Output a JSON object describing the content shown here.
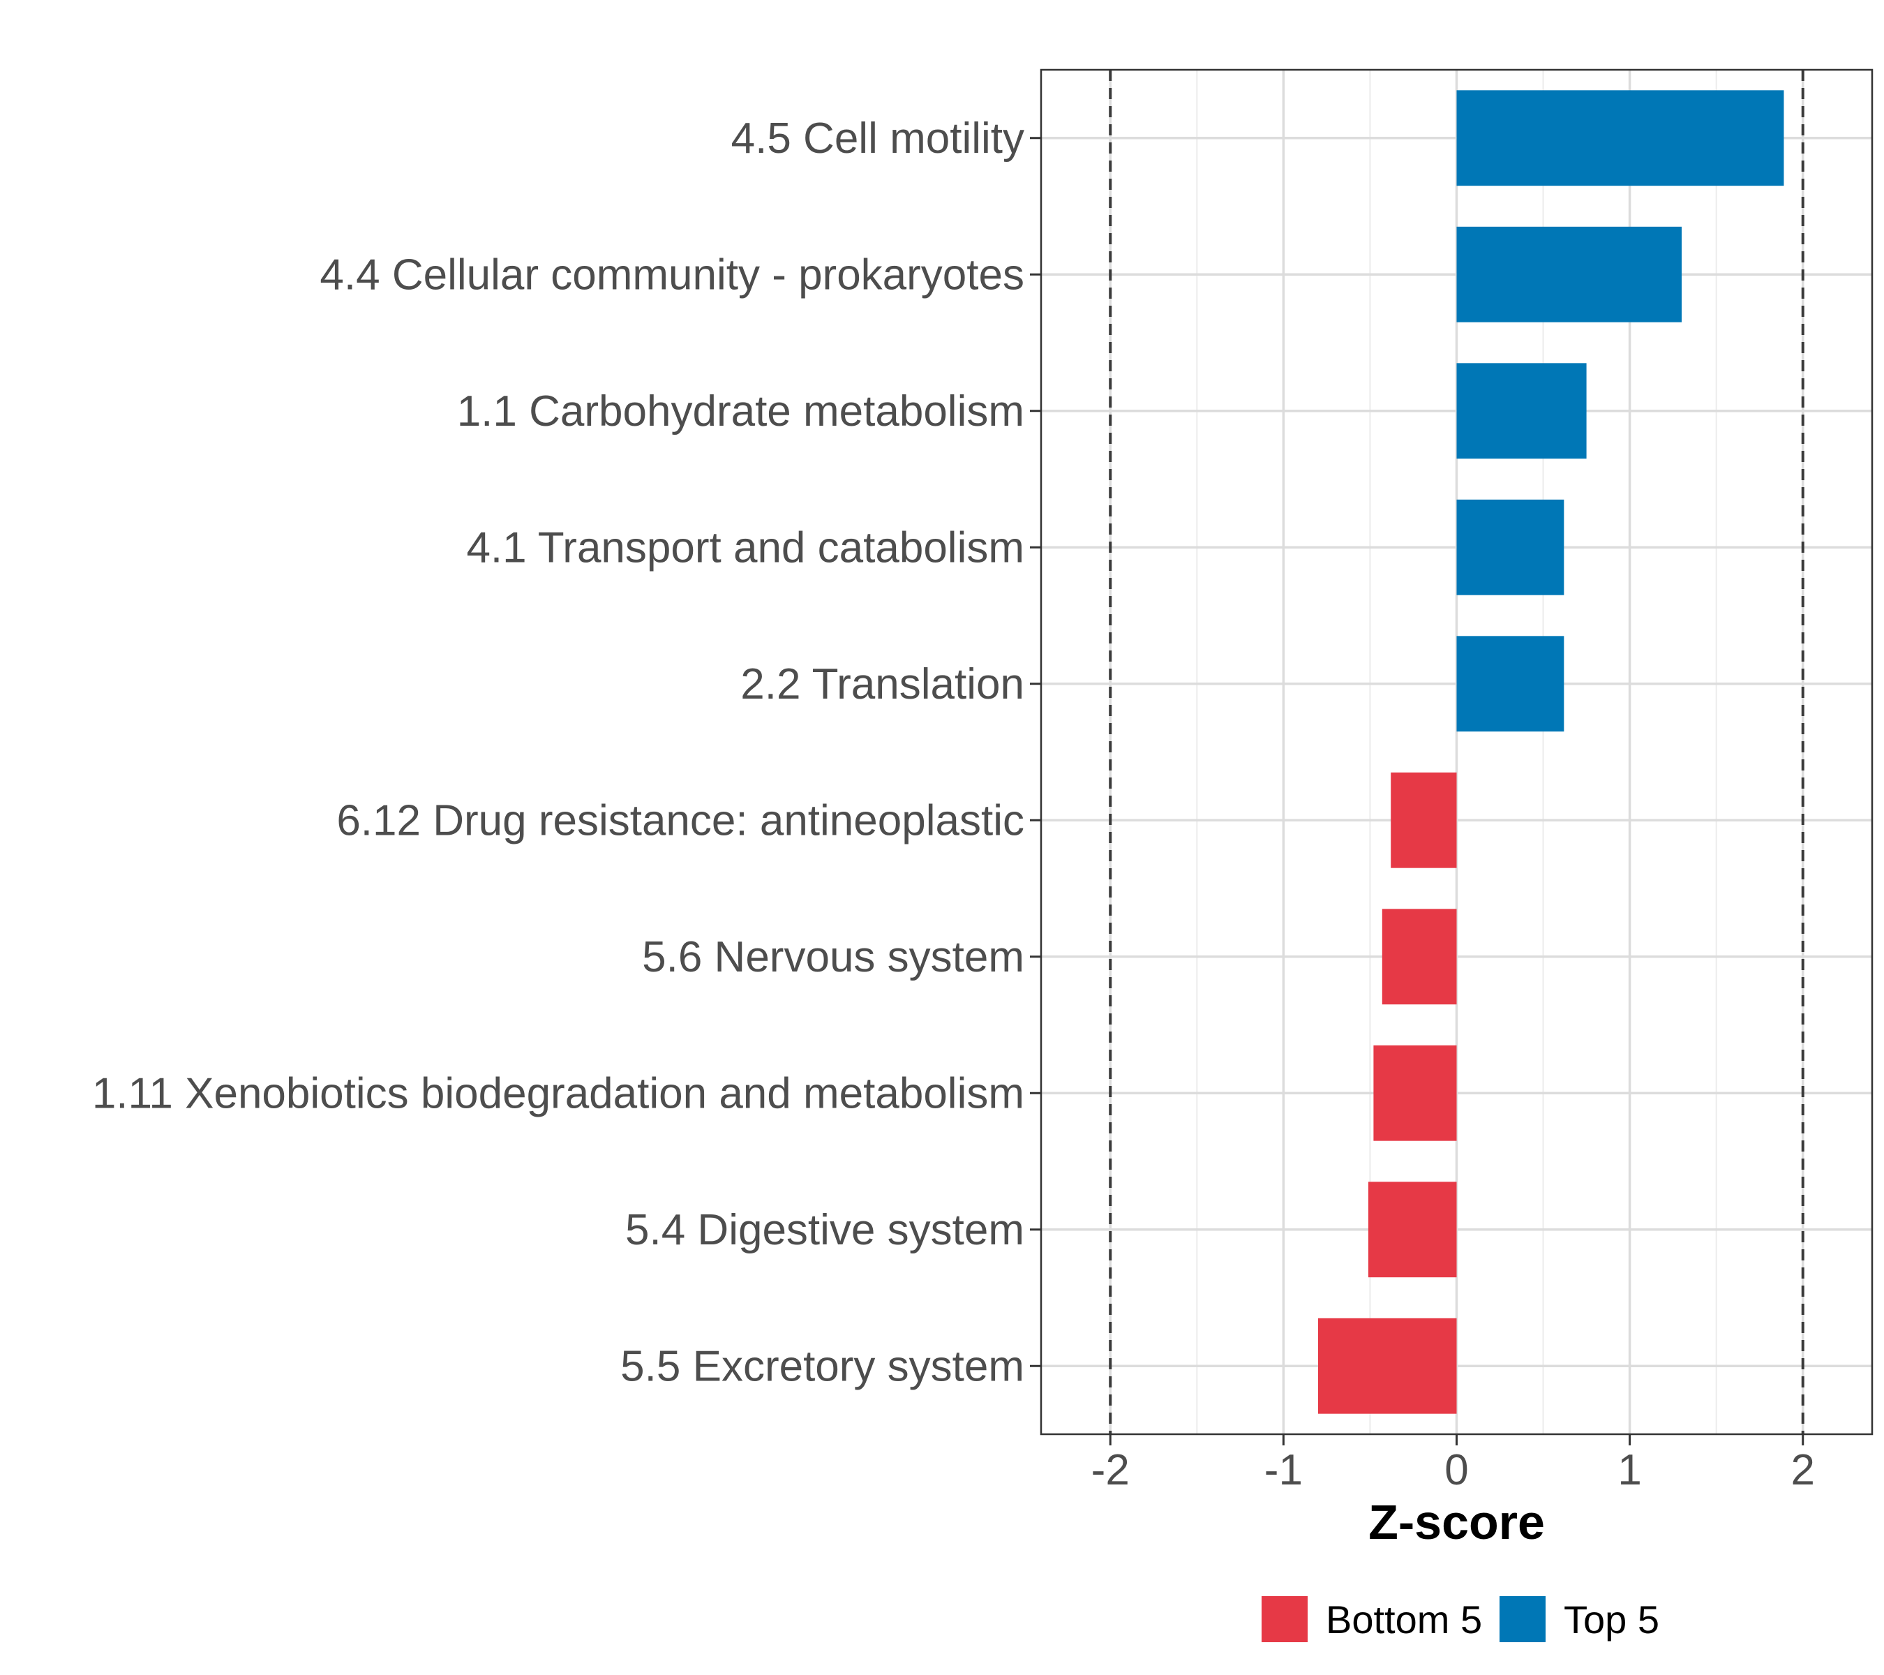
{
  "chart_data": {
    "type": "bar",
    "orientation": "horizontal",
    "title": "",
    "xlabel": "Z-score",
    "ylabel": "",
    "xlim": [
      -2.4,
      2.4
    ],
    "x_ticks": [
      -2,
      -1,
      0,
      1,
      2
    ],
    "x_tick_labels": [
      "-2",
      "-1",
      "0",
      "1",
      "2"
    ],
    "reference_lines": [
      -2,
      2
    ],
    "grid": true,
    "legend_position": "bottom",
    "colors": {
      "Bottom 5": "#e63946",
      "Top 5": "#0077b6"
    },
    "legend": [
      {
        "label": "Bottom 5",
        "color": "#e63946"
      },
      {
        "label": "Top 5",
        "color": "#0077b6"
      }
    ],
    "categories": [
      "4.5 Cell motility",
      "4.4 Cellular community - prokaryotes",
      "1.1 Carbohydrate metabolism",
      "4.1 Transport and catabolism",
      "2.2 Translation",
      "6.12 Drug resistance: antineoplastic",
      "5.6 Nervous system",
      "1.11 Xenobiotics biodegradation and metabolism",
      "5.4 Digestive system",
      "5.5 Excretory system"
    ],
    "values": [
      1.89,
      1.3,
      0.75,
      0.62,
      0.62,
      -0.38,
      -0.43,
      -0.48,
      -0.51,
      -0.8
    ],
    "groups": [
      "Top 5",
      "Top 5",
      "Top 5",
      "Top 5",
      "Top 5",
      "Bottom 5",
      "Bottom 5",
      "Bottom 5",
      "Bottom 5",
      "Bottom 5"
    ]
  }
}
